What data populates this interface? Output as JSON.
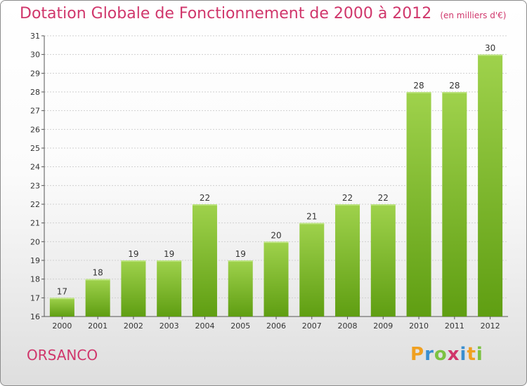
{
  "title": "Dotation Globale de Fonctionnement de 2000 à 2012",
  "subtitle": "(en milliers d'€)",
  "commune": "ORSANCO",
  "logo": {
    "text": "Proxiti",
    "letters": [
      "P",
      "r",
      "o",
      "x",
      "i",
      "t",
      "i"
    ],
    "colors": [
      "#f0a020",
      "#3a8fd0",
      "#7cc242",
      "#d0366b",
      "#3a8fd0",
      "#f0a020",
      "#7cc242"
    ]
  },
  "colors": {
    "title": "#d0366b",
    "bar_light": "#9fd24c",
    "bar_dark": "#5f9e12",
    "grid": "#d0d0d0"
  },
  "chart_data": {
    "type": "bar",
    "title": "Dotation Globale de Fonctionnement de 2000 à 2012",
    "subtitle": "(en milliers d'€)",
    "categories": [
      "2000",
      "2001",
      "2002",
      "2003",
      "2004",
      "2005",
      "2006",
      "2007",
      "2008",
      "2009",
      "2010",
      "2011",
      "2012"
    ],
    "values": [
      17,
      18,
      19,
      19,
      22,
      19,
      20,
      21,
      22,
      22,
      28,
      28,
      30
    ],
    "value_labels": [
      "17",
      "18",
      "19",
      "19",
      "22",
      "19",
      "20",
      "21",
      "22",
      "22",
      "28",
      "28",
      "30"
    ],
    "ylim": [
      16,
      31
    ],
    "yticks": [
      "16",
      "17",
      "18",
      "19",
      "20",
      "21",
      "22",
      "23",
      "24",
      "25",
      "26",
      "27",
      "28",
      "29",
      "30",
      "31"
    ],
    "xlabel": "",
    "ylabel": "",
    "grid": true
  }
}
